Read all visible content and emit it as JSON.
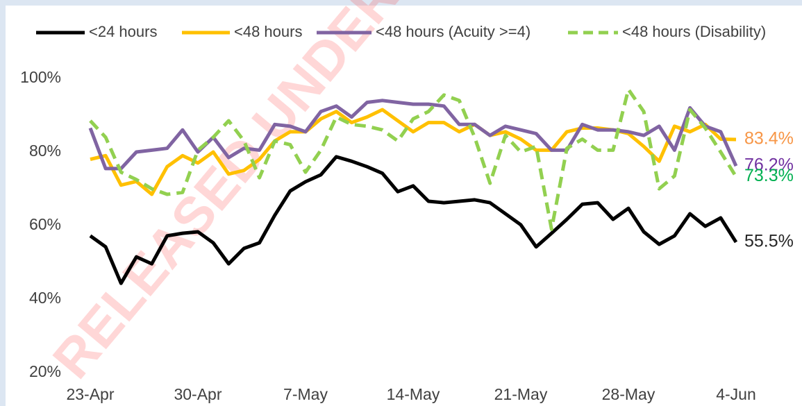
{
  "chart_data": {
    "type": "line",
    "watermark": "RELEASED UNDER",
    "categories": [
      "23-Apr",
      null,
      null,
      null,
      null,
      null,
      null,
      "30-Apr",
      null,
      null,
      null,
      null,
      null,
      null,
      "7-May",
      null,
      null,
      null,
      null,
      null,
      null,
      "14-May",
      null,
      null,
      null,
      null,
      null,
      null,
      "21-May",
      null,
      null,
      null,
      null,
      null,
      null,
      "28-May",
      null,
      null,
      null,
      null,
      null,
      null,
      "4-Jun"
    ],
    "ylim": [
      20,
      100
    ],
    "yticks": [
      {
        "value": 20,
        "label": "20%"
      },
      {
        "value": 40,
        "label": "40%"
      },
      {
        "value": 60,
        "label": "60%"
      },
      {
        "value": 80,
        "label": "80%"
      },
      {
        "value": 100,
        "label": "100%"
      }
    ],
    "grid": false,
    "legend": "top",
    "series": [
      {
        "name": "<24 hours",
        "color": "#000000",
        "dash": false,
        "end_label": "55.5%",
        "label_color": "#262626",
        "values": [
          57.2,
          54.2,
          44.3,
          51.5,
          49.6,
          57.2,
          57.9,
          58.3,
          55.3,
          49.6,
          53.8,
          55.3,
          62.8,
          69.4,
          71.9,
          73.8,
          78.7,
          77.5,
          76.0,
          74.2,
          69.2,
          70.8,
          66.6,
          66.2,
          66.6,
          67.0,
          66.2,
          63.2,
          60.2,
          54.2,
          57.9,
          61.7,
          65.8,
          66.2,
          61.7,
          64.7,
          58.3,
          54.9,
          57.2,
          63.2,
          59.8,
          62.1,
          55.5
        ]
      },
      {
        "name": "<48 hours",
        "color": "#ffc000",
        "dash": false,
        "end_label": "83.4%",
        "label_color": "#f79646",
        "values": [
          78,
          79,
          71,
          72,
          68.5,
          76,
          79,
          77,
          80,
          74,
          75,
          78,
          83,
          85.5,
          85.5,
          89,
          91,
          88,
          89.5,
          91.5,
          88.5,
          85.5,
          88,
          88,
          85.5,
          87.5,
          84.5,
          85.5,
          83.5,
          80.5,
          80.5,
          85.5,
          86.5,
          86.5,
          86,
          85,
          81.5,
          77.5,
          87,
          85.5,
          87.5,
          83.5,
          83.4
        ]
      },
      {
        "name": "<48 hours (Acuity >=4)",
        "color": "#8064a2",
        "dash": false,
        "end_label": "76.2%",
        "label_color": "#7030a0",
        "values": [
          86.5,
          75.5,
          75.5,
          80,
          80.5,
          81,
          86,
          80,
          84,
          78.5,
          81,
          80.5,
          87.5,
          87,
          85.5,
          91,
          92.5,
          89.5,
          93.5,
          94,
          93.5,
          93,
          93,
          92.5,
          87.5,
          87.5,
          84.5,
          87,
          86,
          85,
          80.5,
          80.5,
          87.5,
          86,
          86,
          85.5,
          84.5,
          87,
          80.5,
          92,
          87,
          85.5,
          76.2
        ]
      },
      {
        "name": "<48 hours (Disability)",
        "color": "#92d050",
        "dash": true,
        "end_label": "73.3%",
        "label_color": "#00b050",
        "values": [
          88.5,
          84,
          74.5,
          72.5,
          70,
          68.5,
          69,
          80.5,
          84,
          88.5,
          83,
          73,
          83,
          82,
          74.5,
          80.5,
          89.5,
          87.5,
          87,
          86,
          83,
          89,
          91,
          95.5,
          94,
          84,
          71.5,
          84.5,
          80,
          81.5,
          59,
          81,
          83.5,
          80.5,
          80.5,
          97,
          91,
          70,
          73.5,
          91.5,
          86.5,
          80,
          73.3
        ]
      }
    ]
  }
}
